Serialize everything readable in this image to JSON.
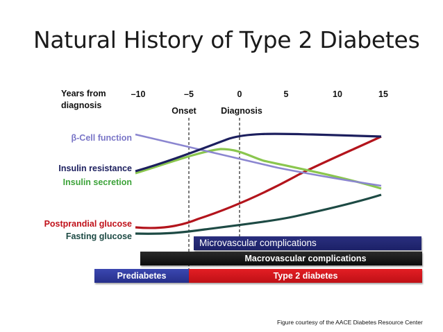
{
  "title": "Natural History of Type 2 Diabetes",
  "axis": {
    "years_label_line1": "Years from",
    "years_label_line2": "diagnosis",
    "ticks": [
      "–10",
      "–5",
      "0",
      "5",
      "10",
      "15"
    ],
    "onset_label": "Onset",
    "diagnosis_label": "Diagnosis"
  },
  "curves": {
    "beta_cell": {
      "label": "β-Cell function",
      "color": "#8b86d0"
    },
    "insulin_resistance": {
      "label": "Insulin resistance",
      "color": "#1c1f5e"
    },
    "insulin_secretion": {
      "label": "Insulin secretion",
      "color": "#8ac64e"
    },
    "postprandial_glucose": {
      "label": "Postprandial glucose",
      "color": "#b3141c"
    },
    "fasting_glucose": {
      "label": "Fasting glucose",
      "color": "#1d4a44"
    }
  },
  "bands": {
    "microvascular": "Microvascular complications",
    "macrovascular": "Macrovascular complications",
    "prediabetes": "Prediabetes",
    "type2": "Type 2 diabetes"
  },
  "credit": "Figure courtesy of the AACE Diabetes Resource Center"
}
